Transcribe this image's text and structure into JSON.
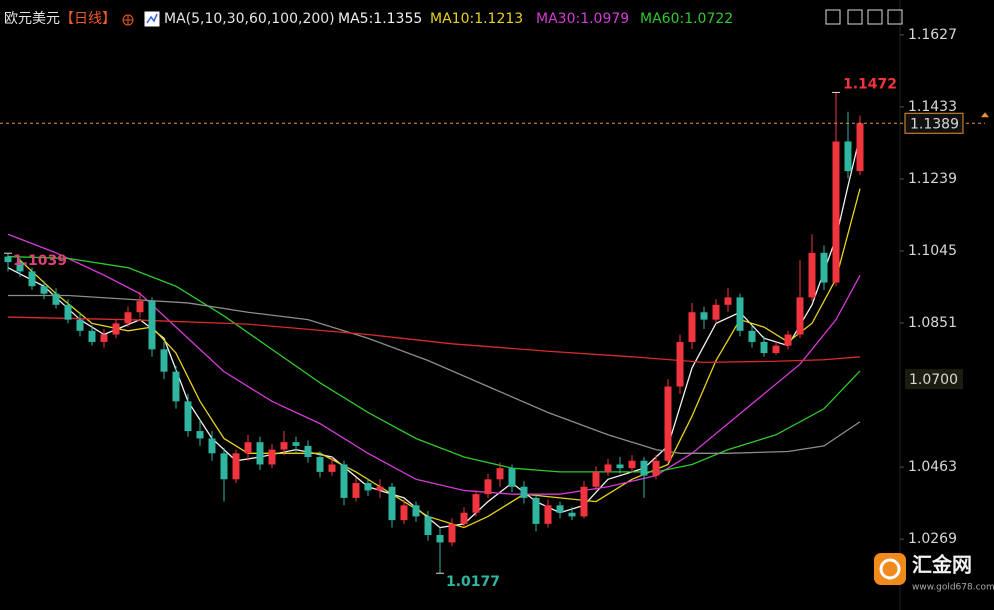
{
  "chart_data": {
    "type": "candlestick",
    "title": "欧元美元",
    "period": "【日线】",
    "indicator": "MA(5,10,30,60,100,200)",
    "ylim": [
      1.0078,
      1.1721
    ],
    "yticks": [
      1.1627,
      1.1433,
      1.1239,
      1.1045,
      1.0851,
      1.0463,
      1.0269
    ],
    "grid": false,
    "up_color": "#f0353f",
    "down_color": "#2fb5a0",
    "candles": [
      [
        1.103,
        1.1039,
        1.099,
        1.1015
      ],
      [
        1.1015,
        1.1025,
        1.0975,
        1.099
      ],
      [
        1.099,
        1.1,
        1.094,
        1.095
      ],
      [
        1.095,
        1.0965,
        1.0915,
        1.093
      ],
      [
        1.093,
        1.0945,
        1.089,
        1.09
      ],
      [
        1.09,
        1.0915,
        1.085,
        1.086
      ],
      [
        1.086,
        1.088,
        1.0815,
        1.083
      ],
      [
        1.083,
        1.0845,
        1.079,
        1.08
      ],
      [
        1.08,
        1.0835,
        1.0785,
        1.082
      ],
      [
        1.082,
        1.086,
        1.081,
        1.085
      ],
      [
        1.085,
        1.0895,
        1.084,
        1.088
      ],
      [
        1.088,
        1.0935,
        1.0865,
        1.091
      ],
      [
        1.091,
        1.092,
        1.076,
        1.078
      ],
      [
        1.078,
        1.08,
        1.07,
        1.072
      ],
      [
        1.072,
        1.0735,
        1.062,
        1.064
      ],
      [
        1.064,
        1.066,
        1.0545,
        1.056
      ],
      [
        1.056,
        1.059,
        1.052,
        1.054
      ],
      [
        1.054,
        1.056,
        1.048,
        1.05
      ],
      [
        1.05,
        1.0515,
        1.037,
        1.043
      ],
      [
        1.043,
        1.051,
        1.042,
        1.05
      ],
      [
        1.05,
        1.055,
        1.048,
        1.053
      ],
      [
        1.053,
        1.0545,
        1.0455,
        1.047
      ],
      [
        1.047,
        1.0525,
        1.046,
        1.051
      ],
      [
        1.051,
        1.056,
        1.0495,
        1.053
      ],
      [
        1.053,
        1.0545,
        1.05,
        1.052
      ],
      [
        1.052,
        1.0535,
        1.0475,
        1.049
      ],
      [
        1.049,
        1.0505,
        1.0435,
        1.045
      ],
      [
        1.045,
        1.049,
        1.044,
        1.047
      ],
      [
        1.047,
        1.048,
        1.036,
        1.038
      ],
      [
        1.038,
        1.0435,
        1.037,
        1.042
      ],
      [
        1.042,
        1.043,
        1.0385,
        1.04
      ],
      [
        1.04,
        1.043,
        1.038,
        1.041
      ],
      [
        1.041,
        1.042,
        1.03,
        1.032
      ],
      [
        1.032,
        1.0375,
        1.031,
        1.036
      ],
      [
        1.036,
        1.037,
        1.0315,
        1.033
      ],
      [
        1.033,
        1.0345,
        1.0265,
        1.028
      ],
      [
        1.028,
        1.03,
        1.0177,
        1.026
      ],
      [
        1.026,
        1.0325,
        1.025,
        1.031
      ],
      [
        1.031,
        1.0355,
        1.03,
        1.034
      ],
      [
        1.034,
        1.04,
        1.033,
        1.039
      ],
      [
        1.039,
        1.0445,
        1.038,
        1.043
      ],
      [
        1.043,
        1.0475,
        1.041,
        1.046
      ],
      [
        1.046,
        1.047,
        1.0395,
        1.041
      ],
      [
        1.041,
        1.0425,
        1.0365,
        1.038
      ],
      [
        1.038,
        1.039,
        1.029,
        1.031
      ],
      [
        1.031,
        1.0375,
        1.03,
        1.036
      ],
      [
        1.036,
        1.037,
        1.0325,
        1.034
      ],
      [
        1.034,
        1.0355,
        1.032,
        1.033
      ],
      [
        1.033,
        1.0425,
        1.0325,
        1.041
      ],
      [
        1.041,
        1.0465,
        1.04,
        1.045
      ],
      [
        1.045,
        1.0485,
        1.044,
        1.047
      ],
      [
        1.047,
        1.049,
        1.0445,
        1.046
      ],
      [
        1.046,
        1.0495,
        1.045,
        1.048
      ],
      [
        1.048,
        1.049,
        1.038,
        1.044
      ],
      [
        1.044,
        1.0495,
        1.043,
        1.048
      ],
      [
        1.048,
        1.07,
        1.0475,
        1.068
      ],
      [
        1.068,
        1.082,
        1.066,
        1.08
      ],
      [
        1.08,
        1.0905,
        1.078,
        1.088
      ],
      [
        1.088,
        1.0895,
        1.0835,
        1.086
      ],
      [
        1.086,
        1.0915,
        1.085,
        1.09
      ],
      [
        1.09,
        1.0945,
        1.088,
        1.092
      ],
      [
        1.092,
        1.093,
        1.0815,
        1.083
      ],
      [
        1.083,
        1.0845,
        1.0785,
        1.08
      ],
      [
        1.08,
        1.0815,
        1.076,
        1.077
      ],
      [
        1.077,
        1.08,
        1.0765,
        1.079
      ],
      [
        1.079,
        1.083,
        1.078,
        1.082
      ],
      [
        1.082,
        1.102,
        1.081,
        1.092
      ],
      [
        1.092,
        1.109,
        1.091,
        1.104
      ],
      [
        1.104,
        1.106,
        1.094,
        1.096
      ],
      [
        1.096,
        1.1472,
        1.095,
        1.134
      ],
      [
        1.134,
        1.142,
        1.124,
        1.126
      ],
      [
        1.126,
        1.141,
        1.125,
        1.1389
      ]
    ],
    "series": [
      {
        "label": "MA5:1.1355",
        "color": "#f2f2f2",
        "x": [
          0,
          3,
          6,
          8,
          11,
          13,
          15,
          17,
          19,
          21,
          24,
          27,
          30,
          33,
          36,
          38,
          40,
          42,
          44,
          46,
          48,
          50,
          53,
          55,
          57,
          59,
          61,
          63,
          65,
          67,
          69,
          70,
          71
        ],
        "values": [
          1.1,
          1.095,
          1.086,
          1.082,
          1.086,
          1.081,
          1.064,
          1.054,
          1.048,
          1.049,
          1.051,
          1.049,
          1.041,
          1.038,
          1.03,
          1.031,
          1.037,
          1.042,
          1.037,
          1.034,
          1.036,
          1.043,
          1.046,
          1.052,
          1.073,
          1.085,
          1.088,
          1.081,
          1.079,
          1.09,
          1.108,
          1.122,
          1.1355
        ]
      },
      {
        "label": "MA10:1.1213",
        "color": "#e8d21c",
        "x": [
          1,
          4,
          7,
          10,
          12,
          14,
          16,
          18,
          20,
          23,
          26,
          29,
          32,
          35,
          38,
          40,
          43,
          46,
          49,
          52,
          55,
          57,
          59,
          61,
          63,
          65,
          67,
          69,
          71
        ],
        "values": [
          1.102,
          1.093,
          1.085,
          1.083,
          1.084,
          1.077,
          1.064,
          1.054,
          1.05,
          1.05,
          1.05,
          1.045,
          1.039,
          1.033,
          1.03,
          1.033,
          1.039,
          1.038,
          1.037,
          1.043,
          1.047,
          1.06,
          1.075,
          1.086,
          1.084,
          1.08,
          1.085,
          1.097,
          1.1213
        ]
      },
      {
        "label": "MA30:1.0979",
        "color": "#d43bd6",
        "x": [
          0,
          4,
          8,
          11,
          14,
          18,
          22,
          26,
          30,
          34,
          38,
          42,
          46,
          50,
          54,
          57,
          60,
          63,
          66,
          69,
          71
        ],
        "values": [
          1.109,
          1.104,
          1.098,
          1.093,
          1.084,
          1.072,
          1.064,
          1.058,
          1.05,
          1.043,
          1.04,
          1.039,
          1.039,
          1.041,
          1.044,
          1.05,
          1.058,
          1.066,
          1.074,
          1.086,
          1.0979
        ]
      },
      {
        "label": "MA60:1.0722",
        "color": "#2fc92f",
        "x": [
          0,
          5,
          10,
          14,
          18,
          22,
          26,
          30,
          34,
          38,
          42,
          46,
          50,
          54,
          57,
          60,
          64,
          68,
          71
        ],
        "values": [
          1.103,
          1.1025,
          1.1,
          1.095,
          1.087,
          1.078,
          1.069,
          1.061,
          1.054,
          1.049,
          1.046,
          1.045,
          1.045,
          1.045,
          1.047,
          1.051,
          1.055,
          1.062,
          1.0722
        ]
      },
      {
        "color": "#8c8c8c",
        "x": [
          0,
          5,
          10,
          15,
          20,
          25,
          30,
          35,
          40,
          45,
          50,
          54,
          56,
          60,
          65,
          68,
          71
        ],
        "values": [
          1.0925,
          1.0925,
          1.0915,
          1.0905,
          1.088,
          1.086,
          1.081,
          1.075,
          1.068,
          1.061,
          1.055,
          1.051,
          1.05,
          1.05,
          1.0505,
          1.052,
          1.0585
        ]
      },
      {
        "color": "#d92b2b",
        "x": [
          0,
          10,
          20,
          30,
          37,
          45,
          52,
          58,
          64,
          68,
          71
        ],
        "values": [
          1.0867,
          1.086,
          1.0848,
          1.082,
          1.0795,
          1.0775,
          1.076,
          1.0745,
          1.0748,
          1.0752,
          1.076
        ]
      }
    ],
    "high_mark": 1.1472,
    "start_mark": 1.1039,
    "low_mark": 1.0177,
    "last_price": 1.1389,
    "level_label": {
      "value": 1.07,
      "label": "1.0700"
    }
  },
  "watermark": {
    "name": "汇金网",
    "url": "www.gold678.com"
  }
}
